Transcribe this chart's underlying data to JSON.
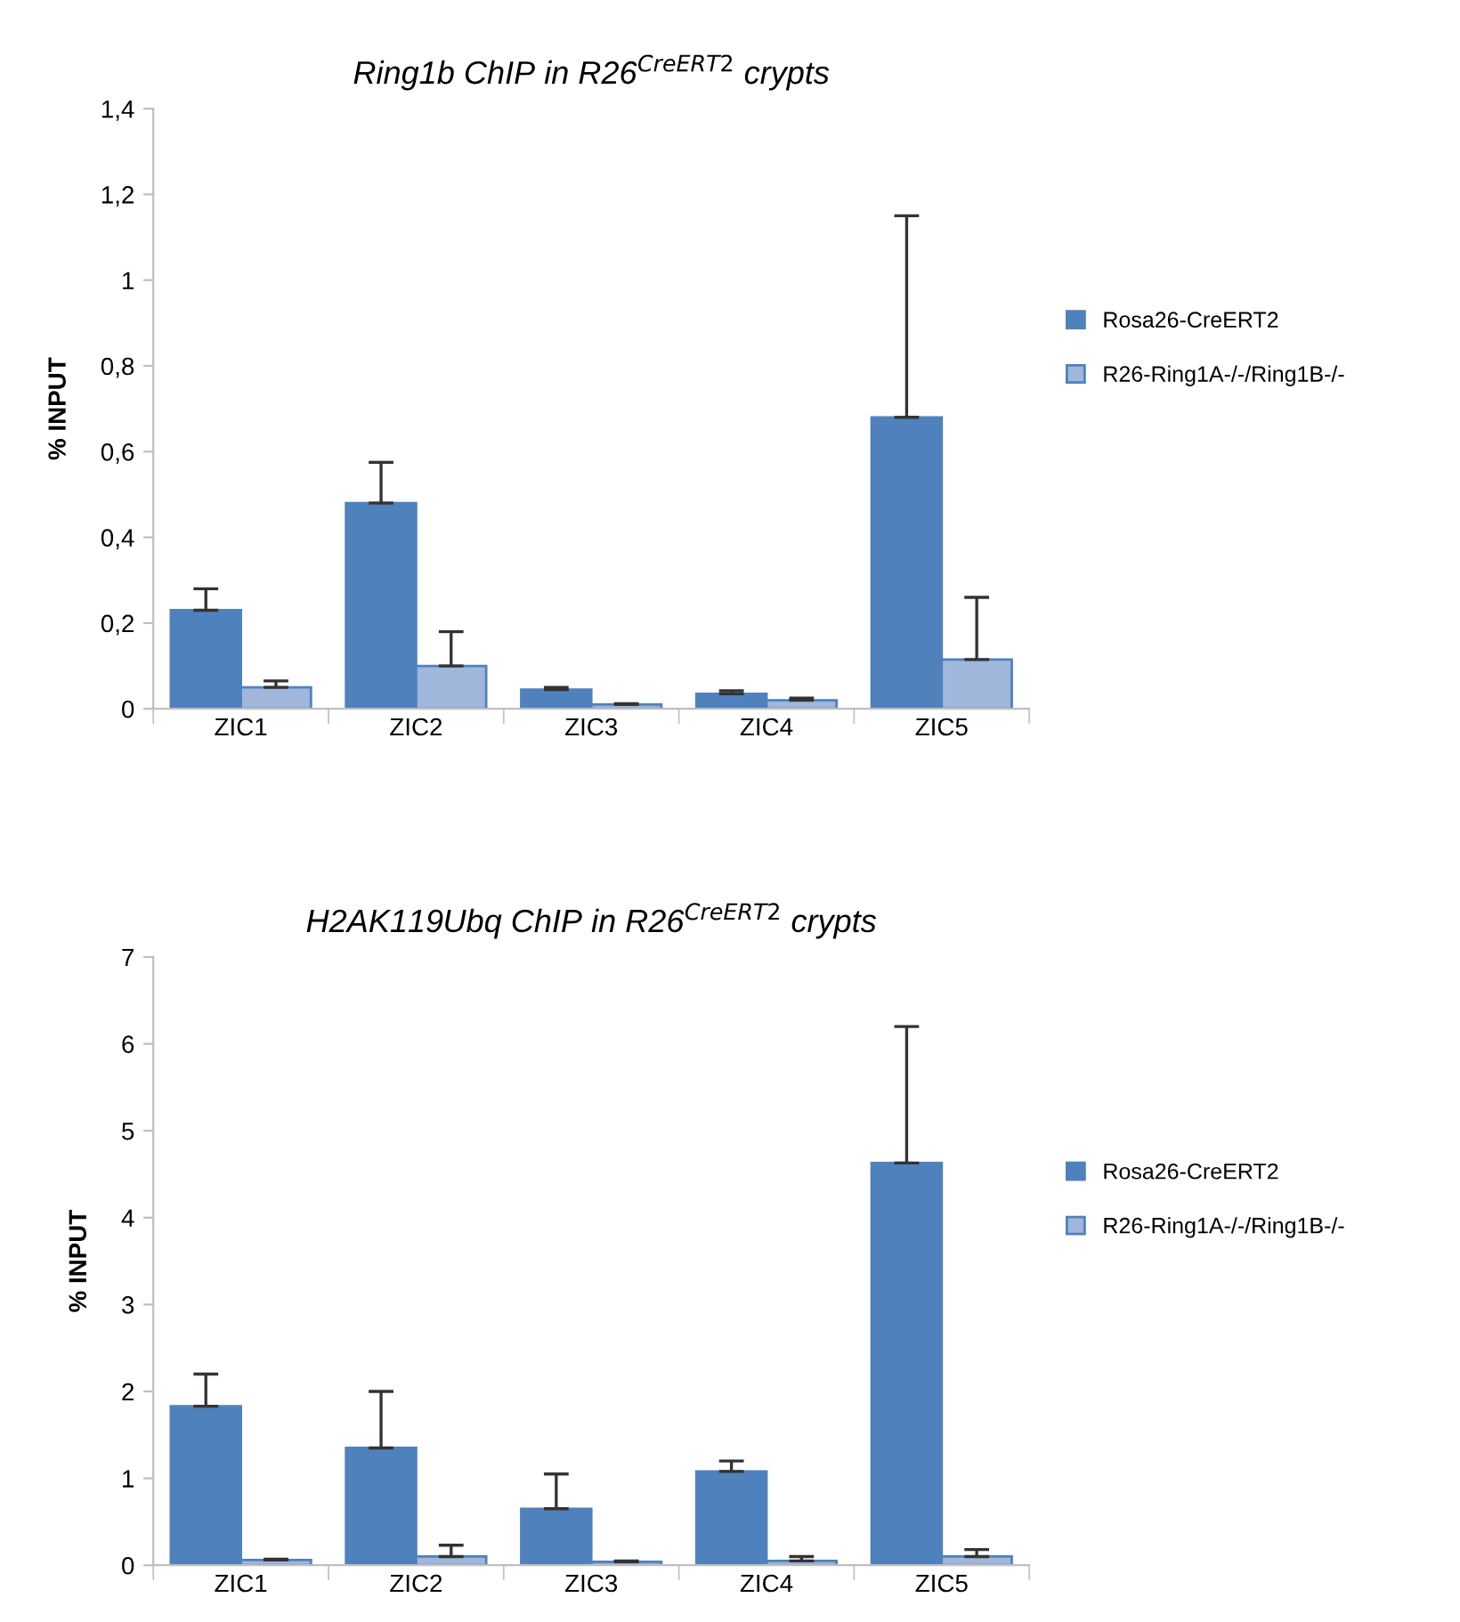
{
  "chart_data": [
    {
      "type": "bar",
      "title": "Ring1b ChIP in R26$^{CreERT2}$ crypts",
      "ylabel": "% INPUT",
      "categories": [
        "ZIC1",
        "ZIC2",
        "ZIC3",
        "ZIC4",
        "ZIC5"
      ],
      "series": [
        {
          "name": "Rosa26-CreERT2",
          "color": "#4f81bd",
          "values": [
            0.23,
            0.48,
            0.045,
            0.035,
            0.68
          ],
          "errors": [
            [
              0.23,
              0.28
            ],
            [
              0.48,
              0.575
            ],
            [
              0.045,
              0.05
            ],
            [
              0.035,
              0.042
            ],
            [
              0.68,
              1.15
            ]
          ]
        },
        {
          "name": "R26-Ring1A-/-/Ring1B-/-",
          "color": "#a0b7db",
          "values": [
            0.05,
            0.1,
            0.01,
            0.02,
            0.115
          ],
          "errors": [
            [
              0.05,
              0.065
            ],
            [
              0.1,
              0.18
            ],
            [
              0.01,
              0.012
            ],
            [
              0.02,
              0.025
            ],
            [
              0.115,
              0.26
            ]
          ]
        }
      ],
      "ylim": [
        0,
        1.4
      ],
      "yticks": [
        0,
        {
          "value": 0.2,
          "label": "0,2"
        },
        {
          "value": 0.4,
          "label": "0,4"
        },
        {
          "value": 0.6,
          "label": "0,6"
        },
        {
          "value": 0.8,
          "label": "0,8"
        },
        1,
        {
          "value": 1.2,
          "label": "1,2"
        },
        {
          "value": 1.4,
          "label": "1,4"
        }
      ],
      "legend": "right"
    },
    {
      "type": "bar",
      "title": "H2AK119Ubq ChIP in R26$^{CreERT2}$ crypts",
      "ylabel": "% INPUT",
      "categories": [
        "ZIC1",
        "ZIC2",
        "ZIC3",
        "ZIC4",
        "ZIC5"
      ],
      "series": [
        {
          "name": "Rosa26-CreERT2",
          "color": "#4f81bd",
          "values": [
            1.83,
            1.35,
            0.65,
            1.08,
            4.63
          ],
          "errors": [
            [
              1.83,
              2.2
            ],
            [
              1.35,
              2.0
            ],
            [
              0.65,
              1.05
            ],
            [
              1.08,
              1.2
            ],
            [
              4.63,
              6.2
            ]
          ]
        },
        {
          "name": "R26-Ring1A-/-/Ring1B-/-",
          "color": "#a0b7db",
          "values": [
            0.06,
            0.1,
            0.04,
            0.05,
            0.1
          ],
          "errors": [
            [
              0.06,
              0.07
            ],
            [
              0.1,
              0.23
            ],
            [
              0.04,
              0.05
            ],
            [
              0.05,
              0.1
            ],
            [
              0.1,
              0.18
            ]
          ]
        }
      ],
      "ylim": [
        0,
        7
      ],
      "yticks": [
        0,
        1,
        2,
        3,
        4,
        5,
        6,
        7
      ],
      "legend": "right"
    }
  ]
}
